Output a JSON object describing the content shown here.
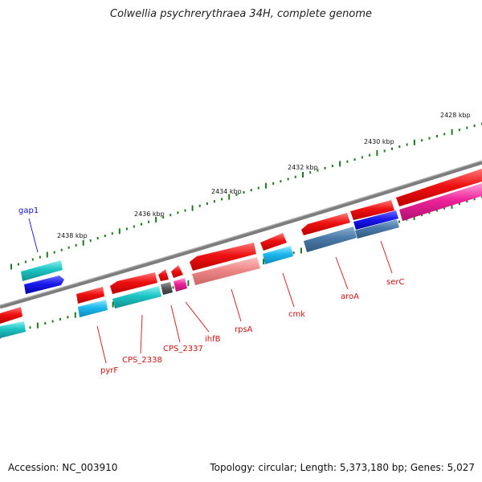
{
  "title": "Colwellia psychrerythraea 34H, complete genome",
  "footer": {
    "accession": "Accession: NC_003910",
    "topology": "Topology: circular; Length: 5,373,180 bp; Genes: 5,027"
  },
  "colors": {
    "backbone": "#7d7d7d",
    "tick": "#1f7a1f",
    "red": "#ee1111",
    "cyan": "#1cc4c4",
    "blue": "#1a1aee",
    "label_red": "#cc1111",
    "label_blue": "#1111cc"
  },
  "scale_labels": [
    "2428 kbp",
    "2430 kbp",
    "2432 kbp",
    "2434 kbp",
    "2436 kbp",
    "2438 kbp"
  ],
  "genes": [
    {
      "name": "gap1",
      "color": "blue-label"
    },
    {
      "name": "pyrF",
      "color": "red-label"
    },
    {
      "name": "CPS_2338",
      "color": "red-label"
    },
    {
      "name": "CPS_2337",
      "color": "red-label"
    },
    {
      "name": "ihfB",
      "color": "red-label"
    },
    {
      "name": "rpsA",
      "color": "red-label"
    },
    {
      "name": "cmk",
      "color": "red-label"
    },
    {
      "name": "aroA",
      "color": "red-label"
    },
    {
      "name": "serC",
      "color": "red-label"
    }
  ]
}
